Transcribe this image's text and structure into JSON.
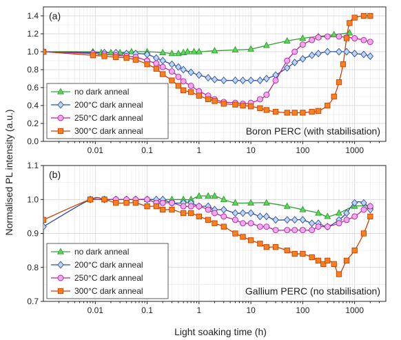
{
  "ylabel": "Normalised PL intensity (a.u.)",
  "xlabel": "Light soaking time (h)",
  "colors": {
    "no_dark_anneal": "#2ca02c",
    "c200": "#2e4da0",
    "c250": "#b5209e",
    "c300": "#cc3f00",
    "marker_no": "#5fd35a",
    "marker_200": "#bcd6f2",
    "marker_250": "#f0a8ee",
    "marker_300": "#f7801e"
  },
  "chart_data": [
    {
      "type": "scatter",
      "panel": "(a)",
      "note": "Boron PERC (with stabilisation)",
      "xscale": "log",
      "xlim": [
        0.001,
        4000
      ],
      "ylim": [
        0.0,
        1.5
      ],
      "x_ticks": [
        "0.01",
        "0.1",
        "1",
        "10",
        "100",
        "1000"
      ],
      "y_ticks": [
        "0.0",
        "0.2",
        "0.4",
        "0.6",
        "0.8",
        "1.0",
        "1.2",
        "1.4"
      ],
      "legend": [
        "no dark anneal",
        "200°C dark anneal",
        "250°C dark anneal",
        "300°C dark anneal"
      ],
      "legend_position": "bottom-left",
      "grid": true,
      "series": [
        {
          "name": "no dark anneal",
          "marker": "triangle",
          "x": [
            0.001,
            0.009,
            0.013,
            0.02,
            0.03,
            0.05,
            0.1,
            0.2,
            0.3,
            0.4,
            0.5,
            0.6,
            0.8,
            1,
            2,
            5,
            10,
            20,
            50,
            100,
            200,
            400,
            800
          ],
          "y": [
            1.0,
            1.0,
            0.99,
            0.99,
            0.99,
            1.0,
            1.0,
            0.99,
            0.98,
            0.98,
            0.99,
            1.0,
            1.0,
            1.0,
            1.01,
            1.02,
            1.03,
            1.07,
            1.12,
            1.15,
            1.17,
            1.19,
            1.21
          ]
        },
        {
          "name": "200°C dark anneal",
          "marker": "diamond",
          "x": [
            0.001,
            0.009,
            0.015,
            0.025,
            0.04,
            0.06,
            0.1,
            0.15,
            0.2,
            0.3,
            0.4,
            0.5,
            0.7,
            1,
            1.5,
            2,
            3,
            5,
            7,
            10,
            15,
            20,
            30,
            50,
            70,
            100,
            150,
            200,
            300,
            500,
            700,
            1000,
            1500,
            2000
          ],
          "y": [
            1.0,
            0.99,
            0.99,
            0.99,
            0.98,
            0.98,
            0.97,
            0.93,
            0.9,
            0.86,
            0.83,
            0.8,
            0.77,
            0.74,
            0.71,
            0.69,
            0.68,
            0.68,
            0.68,
            0.68,
            0.68,
            0.7,
            0.74,
            0.82,
            0.88,
            0.92,
            0.96,
            0.98,
            1.0,
            1.0,
            1.0,
            0.98,
            0.97,
            0.95
          ]
        },
        {
          "name": "250°C dark anneal",
          "marker": "circle",
          "x": [
            0.001,
            0.009,
            0.015,
            0.025,
            0.04,
            0.06,
            0.1,
            0.15,
            0.2,
            0.3,
            0.4,
            0.5,
            0.7,
            1,
            1.5,
            2,
            3,
            5,
            7,
            10,
            15,
            20,
            30,
            50,
            70,
            100,
            150,
            200,
            300,
            500,
            700,
            1000,
            1500,
            2000
          ],
          "y": [
            1.0,
            0.98,
            0.97,
            0.96,
            0.95,
            0.94,
            0.9,
            0.87,
            0.83,
            0.78,
            0.72,
            0.67,
            0.62,
            0.56,
            0.51,
            0.47,
            0.44,
            0.43,
            0.42,
            0.43,
            0.47,
            0.52,
            0.68,
            0.9,
            1.0,
            1.08,
            1.13,
            1.16,
            1.17,
            1.17,
            1.16,
            1.15,
            1.13,
            1.11
          ]
        },
        {
          "name": "300°C dark anneal",
          "marker": "square",
          "x": [
            0.001,
            0.009,
            0.015,
            0.025,
            0.04,
            0.06,
            0.1,
            0.15,
            0.2,
            0.3,
            0.4,
            0.5,
            0.7,
            1,
            1.5,
            2,
            3,
            5,
            7,
            10,
            15,
            20,
            30,
            50,
            70,
            100,
            150,
            200,
            300,
            400,
            500,
            600,
            700,
            800,
            1000,
            1500,
            2000
          ],
          "y": [
            1.0,
            0.96,
            0.95,
            0.94,
            0.93,
            0.91,
            0.86,
            0.81,
            0.75,
            0.68,
            0.62,
            0.57,
            0.55,
            0.51,
            0.47,
            0.45,
            0.42,
            0.41,
            0.4,
            0.39,
            0.37,
            0.35,
            0.33,
            0.32,
            0.32,
            0.32,
            0.33,
            0.34,
            0.4,
            0.5,
            0.66,
            0.86,
            1.15,
            1.32,
            1.38,
            1.4,
            1.4
          ]
        }
      ]
    },
    {
      "type": "scatter",
      "panel": "(b)",
      "note": "Gallium PERC (no stabilisation)",
      "xscale": "log",
      "xlim": [
        0.001,
        4000
      ],
      "ylim": [
        0.7,
        1.1
      ],
      "x_ticks": [
        "0.01",
        "0.1",
        "1",
        "10",
        "100",
        "1000"
      ],
      "y_ticks": [
        "0.7",
        "0.8",
        "0.9",
        "1.0",
        "1.1"
      ],
      "legend": [
        "no dark anneal",
        "200°C dark anneal",
        "250°C dark anneal",
        "300°C dark anneal"
      ],
      "legend_position": "bottom-left",
      "grid": true,
      "series": [
        {
          "name": "no dark anneal",
          "marker": "triangle",
          "x": [
            0.008,
            0.015,
            0.025,
            0.04,
            0.06,
            0.1,
            0.15,
            0.2,
            0.3,
            0.5,
            0.7,
            1,
            1.5,
            2,
            3,
            5,
            10,
            20,
            50,
            100,
            200,
            300,
            500,
            1000,
            2000
          ],
          "y": [
            1.0,
            1.0,
            1.0,
            1.0,
            1.0,
            1.0,
            1.0,
            1.0,
            1.0,
            1.0,
            1.0,
            1.01,
            1.01,
            1.01,
            1.0,
            0.99,
            0.99,
            0.99,
            0.98,
            0.97,
            0.96,
            0.95,
            0.96,
            0.98,
            0.98
          ]
        },
        {
          "name": "200°C dark anneal",
          "marker": "diamond",
          "x": [
            0.001,
            0.008,
            0.015,
            0.025,
            0.04,
            0.06,
            0.1,
            0.15,
            0.2,
            0.3,
            0.5,
            0.7,
            1,
            1.5,
            2,
            3,
            5,
            7,
            10,
            15,
            20,
            30,
            50,
            70,
            100,
            150,
            200,
            300,
            500,
            700,
            1000,
            1500,
            2000
          ],
          "y": [
            0.92,
            1.0,
            1.0,
            1.0,
            1.0,
            1.0,
            1.0,
            1.0,
            1.0,
            0.99,
            0.99,
            0.99,
            0.98,
            0.98,
            0.97,
            0.97,
            0.96,
            0.96,
            0.96,
            0.95,
            0.95,
            0.94,
            0.94,
            0.94,
            0.94,
            0.93,
            0.93,
            0.92,
            0.94,
            0.96,
            0.99,
            0.99,
            0.97
          ]
        },
        {
          "name": "250°C dark anneal",
          "marker": "circle",
          "x": [
            0.008,
            0.015,
            0.025,
            0.04,
            0.06,
            0.1,
            0.15,
            0.2,
            0.3,
            0.5,
            0.7,
            1,
            1.5,
            2,
            3,
            5,
            7,
            10,
            15,
            20,
            30,
            50,
            70,
            100,
            150,
            200,
            300,
            500,
            700,
            1000,
            1500,
            2000
          ],
          "y": [
            1.0,
            1.0,
            1.0,
            1.0,
            1.0,
            1.0,
            0.99,
            0.99,
            0.99,
            0.98,
            0.98,
            0.98,
            0.97,
            0.96,
            0.95,
            0.94,
            0.93,
            0.93,
            0.92,
            0.92,
            0.91,
            0.91,
            0.91,
            0.91,
            0.91,
            0.92,
            0.92,
            0.93,
            0.94,
            0.95,
            0.97,
            0.98
          ]
        },
        {
          "name": "300°C dark anneal",
          "marker": "square",
          "x": [
            0.001,
            0.008,
            0.015,
            0.025,
            0.04,
            0.06,
            0.1,
            0.15,
            0.2,
            0.3,
            0.5,
            0.7,
            1,
            1.5,
            2,
            3,
            5,
            7,
            10,
            15,
            20,
            30,
            50,
            70,
            100,
            150,
            200,
            250,
            300,
            400,
            500,
            700,
            1000,
            1500,
            2000
          ],
          "y": [
            0.94,
            1.0,
            1.0,
            0.99,
            0.99,
            0.99,
            0.98,
            0.98,
            0.97,
            0.97,
            0.96,
            0.96,
            0.95,
            0.94,
            0.93,
            0.92,
            0.9,
            0.89,
            0.88,
            0.87,
            0.86,
            0.86,
            0.85,
            0.84,
            0.84,
            0.83,
            0.82,
            0.81,
            0.82,
            0.81,
            0.78,
            0.82,
            0.85,
            0.9,
            0.95
          ]
        }
      ]
    }
  ]
}
